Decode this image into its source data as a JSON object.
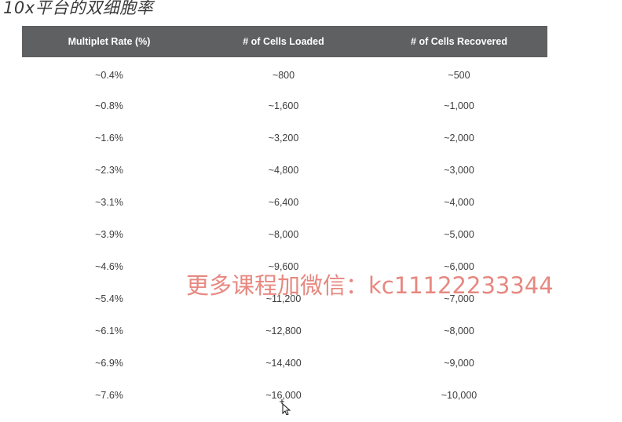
{
  "page": {
    "title": "10x平台的双细胞率"
  },
  "table": {
    "headers": [
      "Multiplet Rate (%)",
      "# of Cells Loaded",
      "# of Cells Recovered"
    ],
    "rows": [
      [
        "~0.4%",
        "~800",
        "~500"
      ],
      [
        "~0.8%",
        "~1,600",
        "~1,000"
      ],
      [
        "~1.6%",
        "~3,200",
        "~2,000"
      ],
      [
        "~2.3%",
        "~4,800",
        "~3,000"
      ],
      [
        "~3.1%",
        "~6,400",
        "~4,000"
      ],
      [
        "~3.9%",
        "~8,000",
        "~5,000"
      ],
      [
        "~4.6%",
        "~9,600",
        "~6,000"
      ],
      [
        "~5.4%",
        "~11,200",
        "~7,000"
      ],
      [
        "~6.1%",
        "~12,800",
        "~8,000"
      ],
      [
        "~6.9%",
        "~14,400",
        "~9,000"
      ],
      [
        "~7.6%",
        "~16,000",
        "~10,000"
      ]
    ]
  },
  "watermark": {
    "text": "更多课程加微信：kc11122233344"
  },
  "colors": {
    "header_bg": "#5f6061",
    "header_text": "#ffffff",
    "cell_text": "#3d3d3d",
    "watermark": "#e26e64"
  },
  "cursor": {
    "icon": "mouse-pointer-icon"
  }
}
